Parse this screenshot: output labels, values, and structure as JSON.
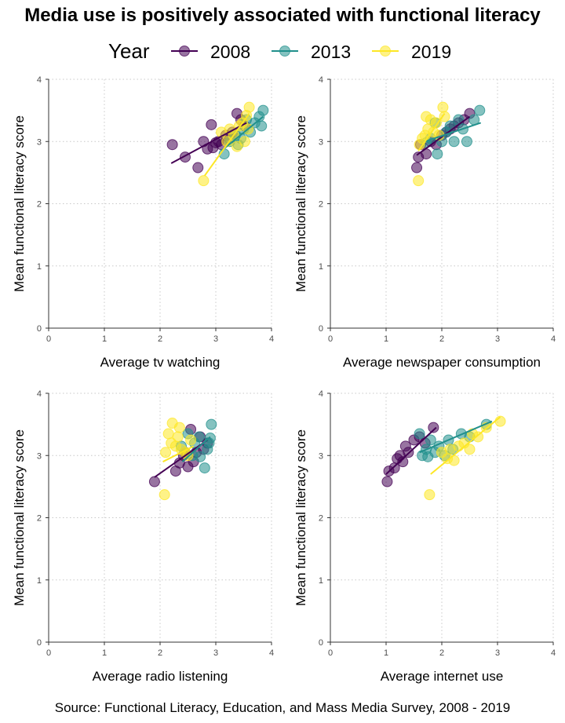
{
  "title": "Media use is positively associated with functional literacy",
  "legend": {
    "title": "Year",
    "entries": [
      {
        "label": "2008",
        "color": "#440154"
      },
      {
        "label": "2013",
        "color": "#21908C"
      },
      {
        "label": "2019",
        "color": "#FDE725"
      }
    ]
  },
  "source": "Source: Functional Literacy, Education, and Mass Media Survey, 2008 - 2019",
  "chart_data": [
    {
      "type": "scatter",
      "xlabel": "Average tv watching",
      "ylabel": "Mean functional literacy score",
      "xlim": [
        0,
        4
      ],
      "ylim": [
        0,
        4
      ],
      "x_ticks": [
        "0",
        "1",
        "2",
        "3",
        "4"
      ],
      "y_ticks": [
        "0",
        "1",
        "2",
        "3",
        "4"
      ],
      "grid": true,
      "series": [
        {
          "name": "2008",
          "color": "#440154",
          "points": [
            [
              2.22,
              2.95
            ],
            [
              2.45,
              2.75
            ],
            [
              2.68,
              2.58
            ],
            [
              2.78,
              3.0
            ],
            [
              2.85,
              2.88
            ],
            [
              2.92,
              3.27
            ],
            [
              2.95,
              2.9
            ],
            [
              3.0,
              2.98
            ],
            [
              3.05,
              3.0
            ],
            [
              3.1,
              2.95
            ],
            [
              3.18,
              3.1
            ],
            [
              3.25,
              3.05
            ],
            [
              3.3,
              3.15
            ],
            [
              3.38,
              3.45
            ],
            [
              3.45,
              3.35
            ],
            [
              3.52,
              3.25
            ]
          ],
          "trend": [
            [
              2.2,
              2.65
            ],
            [
              3.55,
              3.3
            ]
          ]
        },
        {
          "name": "2013",
          "color": "#21908C",
          "points": [
            [
              3.15,
              2.8
            ],
            [
              3.25,
              3.0
            ],
            [
              3.35,
              3.1
            ],
            [
              3.45,
              3.05
            ],
            [
              3.5,
              3.2
            ],
            [
              3.55,
              3.35
            ],
            [
              3.62,
              3.15
            ],
            [
              3.7,
              3.3
            ],
            [
              3.78,
              3.4
            ],
            [
              3.82,
              3.25
            ],
            [
              3.85,
              3.5
            ],
            [
              3.4,
              2.95
            ]
          ],
          "trend": [
            [
              3.1,
              2.85
            ],
            [
              3.85,
              3.4
            ]
          ]
        },
        {
          "name": "2019",
          "color": "#FDE725",
          "points": [
            [
              2.78,
              2.37
            ],
            [
              3.1,
              3.15
            ],
            [
              3.2,
              3.0
            ],
            [
              3.25,
              3.2
            ],
            [
              3.32,
              3.1
            ],
            [
              3.38,
              2.92
            ],
            [
              3.42,
              3.25
            ],
            [
              3.48,
              3.3
            ],
            [
              3.52,
              3.0
            ],
            [
              3.55,
              3.42
            ],
            [
              3.6,
              3.55
            ],
            [
              3.58,
              3.2
            ]
          ],
          "trend": [
            [
              2.8,
              2.45
            ],
            [
              3.6,
              3.45
            ]
          ]
        }
      ]
    },
    {
      "type": "scatter",
      "xlabel": "Average newspaper consumption",
      "ylabel": "Mean functional literacy score",
      "xlim": [
        0,
        4
      ],
      "ylim": [
        0,
        4
      ],
      "x_ticks": [
        "0",
        "1",
        "2",
        "3",
        "4"
      ],
      "y_ticks": [
        "0",
        "1",
        "2",
        "3",
        "4"
      ],
      "grid": true,
      "series": [
        {
          "name": "2008",
          "color": "#440154",
          "points": [
            [
              1.55,
              2.58
            ],
            [
              1.58,
              2.75
            ],
            [
              1.62,
              2.95
            ],
            [
              1.72,
              2.8
            ],
            [
              1.8,
              3.0
            ],
            [
              1.9,
              2.95
            ],
            [
              2.0,
              3.1
            ],
            [
              2.08,
              3.15
            ],
            [
              2.15,
              3.2
            ],
            [
              2.22,
              3.25
            ],
            [
              2.3,
              3.3
            ],
            [
              2.4,
              3.35
            ],
            [
              2.5,
              3.45
            ]
          ],
          "trend": [
            [
              1.55,
              2.78
            ],
            [
              2.5,
              3.4
            ]
          ]
        },
        {
          "name": "2013",
          "color": "#21908C",
          "points": [
            [
              1.72,
              2.98
            ],
            [
              1.8,
              3.05
            ],
            [
              1.92,
              2.8
            ],
            [
              2.0,
              3.0
            ],
            [
              2.08,
              3.15
            ],
            [
              2.15,
              3.25
            ],
            [
              2.22,
              3.0
            ],
            [
              2.3,
              3.35
            ],
            [
              2.38,
              3.2
            ],
            [
              2.45,
              3.0
            ],
            [
              2.58,
              3.35
            ],
            [
              2.68,
              3.5
            ],
            [
              1.88,
              3.3
            ]
          ],
          "trend": [
            [
              1.7,
              3.0
            ],
            [
              2.7,
              3.3
            ]
          ]
        },
        {
          "name": "2019",
          "color": "#FDE725",
          "points": [
            [
              1.58,
              2.37
            ],
            [
              1.6,
              2.95
            ],
            [
              1.65,
              3.05
            ],
            [
              1.7,
              3.1
            ],
            [
              1.75,
              3.2
            ],
            [
              1.8,
              3.35
            ],
            [
              1.85,
              3.15
            ],
            [
              1.9,
              3.3
            ],
            [
              1.95,
              3.1
            ],
            [
              2.02,
              3.55
            ],
            [
              2.05,
              3.4
            ],
            [
              1.72,
              3.4
            ]
          ],
          "trend": [
            [
              1.58,
              2.85
            ],
            [
              2.05,
              3.45
            ]
          ]
        }
      ]
    },
    {
      "type": "scatter",
      "xlabel": "Average radio listening",
      "ylabel": "Mean functional literacy score",
      "xlim": [
        0,
        4
      ],
      "ylim": [
        0,
        4
      ],
      "x_ticks": [
        "0",
        "1",
        "2",
        "3",
        "4"
      ],
      "y_ticks": [
        "0",
        "1",
        "2",
        "3",
        "4"
      ],
      "grid": true,
      "series": [
        {
          "name": "2008",
          "color": "#440154",
          "points": [
            [
              1.9,
              2.58
            ],
            [
              2.28,
              2.75
            ],
            [
              2.35,
              2.88
            ],
            [
              2.42,
              3.0
            ],
            [
              2.5,
              2.82
            ],
            [
              2.55,
              3.42
            ],
            [
              2.6,
              2.9
            ],
            [
              2.65,
              3.05
            ],
            [
              2.72,
              3.3
            ],
            [
              2.78,
              3.1
            ],
            [
              2.85,
              3.2
            ],
            [
              2.45,
              3.05
            ]
          ],
          "trend": [
            [
              1.9,
              2.65
            ],
            [
              2.85,
              3.25
            ]
          ]
        },
        {
          "name": "2013",
          "color": "#21908C",
          "points": [
            [
              2.38,
              3.15
            ],
            [
              2.5,
              3.35
            ],
            [
              2.58,
              3.0
            ],
            [
              2.62,
              3.2
            ],
            [
              2.7,
              3.3
            ],
            [
              2.72,
              2.98
            ],
            [
              2.8,
              2.8
            ],
            [
              2.85,
              3.1
            ],
            [
              2.9,
              3.28
            ],
            [
              2.92,
              3.5
            ],
            [
              2.88,
              3.2
            ]
          ],
          "trend": [
            [
              2.4,
              2.9
            ],
            [
              2.9,
              3.3
            ]
          ]
        },
        {
          "name": "2019",
          "color": "#FDE725",
          "points": [
            [
              2.08,
              2.37
            ],
            [
              2.1,
              3.05
            ],
            [
              2.15,
              3.35
            ],
            [
              2.2,
              3.2
            ],
            [
              2.22,
              3.52
            ],
            [
              2.28,
              3.15
            ],
            [
              2.32,
              3.3
            ],
            [
              2.38,
              3.1
            ],
            [
              2.45,
              3.05
            ],
            [
              2.5,
              3.0
            ],
            [
              2.55,
              3.25
            ],
            [
              2.35,
              3.45
            ]
          ],
          "trend": [
            [
              2.05,
              2.9
            ],
            [
              2.6,
              3.15
            ]
          ]
        }
      ]
    },
    {
      "type": "scatter",
      "xlabel": "Average internet use",
      "ylabel": "Mean functional literacy score",
      "xlim": [
        0,
        4
      ],
      "ylim": [
        0,
        4
      ],
      "x_ticks": [
        "0",
        "1",
        "2",
        "3",
        "4"
      ],
      "y_ticks": [
        "0",
        "1",
        "2",
        "3",
        "4"
      ],
      "grid": true,
      "series": [
        {
          "name": "2008",
          "color": "#440154",
          "points": [
            [
              1.02,
              2.58
            ],
            [
              1.05,
              2.75
            ],
            [
              1.15,
              2.8
            ],
            [
              1.2,
              2.95
            ],
            [
              1.25,
              3.0
            ],
            [
              1.3,
              2.9
            ],
            [
              1.35,
              3.15
            ],
            [
              1.4,
              3.05
            ],
            [
              1.5,
              3.25
            ],
            [
              1.6,
              3.3
            ],
            [
              1.7,
              3.2
            ],
            [
              1.85,
              3.45
            ]
          ],
          "trend": [
            [
              1.0,
              2.7
            ],
            [
              1.9,
              3.45
            ]
          ]
        },
        {
          "name": "2013",
          "color": "#21908C",
          "points": [
            [
              1.6,
              3.35
            ],
            [
              1.65,
              3.0
            ],
            [
              1.72,
              3.1
            ],
            [
              1.8,
              3.25
            ],
            [
              1.88,
              3.05
            ],
            [
              1.95,
              3.15
            ],
            [
              2.05,
              3.0
            ],
            [
              2.12,
              3.25
            ],
            [
              2.2,
              3.1
            ],
            [
              2.35,
              3.35
            ],
            [
              2.5,
              3.3
            ],
            [
              2.8,
              3.5
            ],
            [
              1.75,
              2.98
            ]
          ],
          "trend": [
            [
              1.6,
              3.05
            ],
            [
              2.9,
              3.55
            ]
          ]
        },
        {
          "name": "2019",
          "color": "#FDE725",
          "points": [
            [
              1.78,
              2.37
            ],
            [
              2.0,
              3.05
            ],
            [
              2.1,
              2.95
            ],
            [
              2.15,
              3.1
            ],
            [
              2.22,
              2.92
            ],
            [
              2.3,
              3.15
            ],
            [
              2.4,
              3.2
            ],
            [
              2.5,
              3.1
            ],
            [
              2.55,
              3.35
            ],
            [
              2.65,
              3.3
            ],
            [
              2.8,
              3.45
            ],
            [
              3.05,
              3.55
            ]
          ],
          "trend": [
            [
              1.8,
              2.7
            ],
            [
              3.05,
              3.62
            ]
          ]
        }
      ]
    }
  ]
}
